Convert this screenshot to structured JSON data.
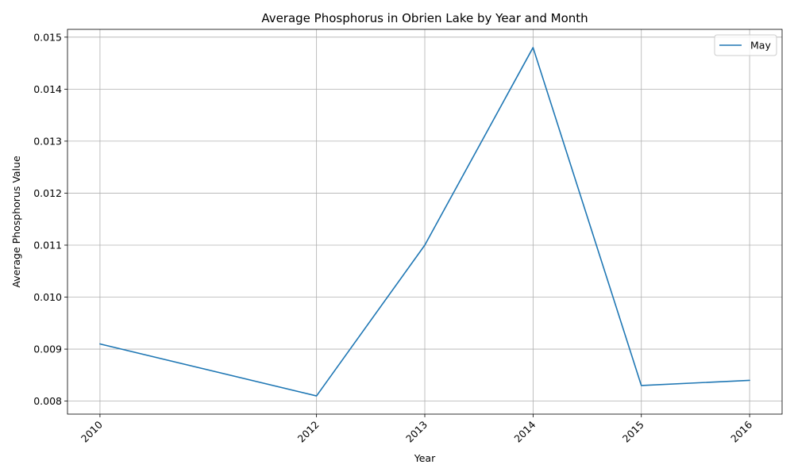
{
  "chart_data": {
    "type": "line",
    "title": "Average Phosphorus in Obrien Lake by Year and Month",
    "xlabel": "Year",
    "ylabel": "Average Phosphorus Value",
    "x": [
      2010,
      2012,
      2013,
      2014,
      2015,
      2016
    ],
    "x_tick_labels": [
      "2010",
      "2012",
      "2013",
      "2014",
      "2015",
      "2016"
    ],
    "y_ticks": [
      0.008,
      0.009,
      0.01,
      0.011,
      0.012,
      0.013,
      0.014,
      0.015
    ],
    "y_tick_labels": [
      "0.008",
      "0.009",
      "0.010",
      "0.011",
      "0.012",
      "0.013",
      "0.014",
      "0.015"
    ],
    "xlim": [
      2009.7,
      2016.3
    ],
    "ylim": [
      0.00775,
      0.01515
    ],
    "grid": true,
    "legend_position": "top-right",
    "series": [
      {
        "name": "May",
        "color": "#1f77b4",
        "values": [
          0.0091,
          0.0081,
          0.011,
          0.0148,
          0.0083,
          0.0084
        ]
      }
    ]
  }
}
